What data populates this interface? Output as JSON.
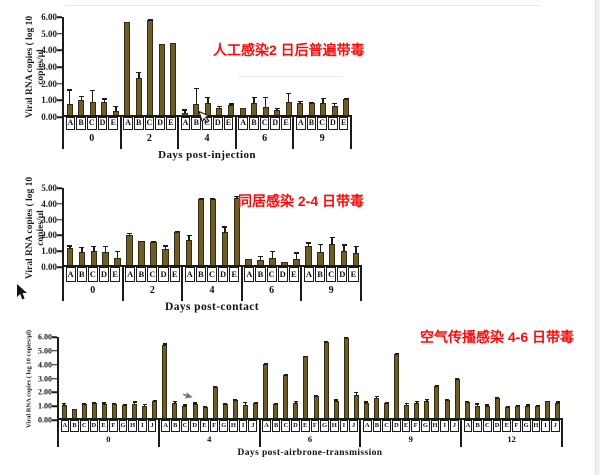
{
  "annotations": {
    "color": "#f60d0d",
    "chart1": "人工感染2 日后普遍带毒",
    "chart2": "同居感染 2-4 日带毒",
    "chart3": "空气传播感染 4-6 日带毒"
  },
  "chart_data": [
    {
      "type": "bar",
      "title": "",
      "ylabel": "Viral RNA copies ( log 10 copies/µl",
      "ylabel_lines": [
        "Viral RNA copies ( log 10",
        "copies/µl"
      ],
      "xlabel": "Days post-injection",
      "ylim": [
        0,
        6
      ],
      "yticks": [
        "6.00",
        "5.00",
        "4.00",
        "3.00",
        "2.00",
        "1.00",
        "0.00"
      ],
      "bar_color": "#6f5c28",
      "grid": false,
      "subjects": [
        "A",
        "B",
        "C",
        "D",
        "E"
      ],
      "groups": [
        "0",
        "2",
        "4",
        "6",
        "9"
      ],
      "series": [
        {
          "day": "0",
          "values": [
            0.65,
            0.9,
            0.8,
            0.8,
            0.25
          ],
          "errors": [
            0.9,
            0.25,
            0.7,
            0.2,
            0.3
          ]
        },
        {
          "day": "2",
          "values": [
            5.6,
            2.2,
            5.7,
            4.25,
            4.3
          ],
          "errors": [
            0,
            0.4,
            0.05,
            0,
            0
          ]
        },
        {
          "day": "4",
          "values": [
            0.1,
            0.65,
            0.75,
            0.45,
            0.6
          ],
          "errors": [
            0.25,
            1.0,
            0.35,
            0.1,
            0.1
          ]
        },
        {
          "day": "6",
          "values": [
            0.45,
            0.7,
            0.5,
            0.3,
            0.8
          ],
          "errors": [
            0,
            0.4,
            0.6,
            0.15,
            0.55
          ]
        },
        {
          "day": "9",
          "values": [
            0.7,
            0.75,
            0.7,
            0.55,
            0.95
          ],
          "errors": [
            0.15,
            0.05,
            0.35,
            0.2,
            0.1
          ]
        }
      ]
    },
    {
      "type": "bar",
      "title": "",
      "ylabel": "Viral RNA copies ( log 10 copies/µl",
      "ylabel_lines": [
        "Viral RNA copies ( log 10",
        "copies/µl"
      ],
      "xlabel": "Days post-contact",
      "ylim": [
        0,
        5
      ],
      "yticks": [
        "5.00",
        "4.00",
        "3.00",
        "2.00",
        "1.00",
        "0.00"
      ],
      "bar_color": "#6f5c28",
      "grid": false,
      "subjects": [
        "A",
        "B",
        "C",
        "D",
        "E"
      ],
      "groups": [
        "0",
        "2",
        "4",
        "6",
        "9"
      ],
      "series": [
        {
          "day": "0",
          "values": [
            1.1,
            0.85,
            0.9,
            0.85,
            0.45
          ],
          "errors": [
            0.15,
            0.3,
            0.3,
            0.35,
            0.45
          ]
        },
        {
          "day": "2",
          "values": [
            1.9,
            1.5,
            1.45,
            1.0,
            2.1
          ],
          "errors": [
            0.15,
            0.05,
            0.1,
            0.25,
            0.05
          ]
        },
        {
          "day": "4",
          "values": [
            1.6,
            4.2,
            4.15,
            2.1,
            4.25
          ],
          "errors": [
            0.3,
            0.05,
            0.1,
            0.35,
            0.15
          ]
        },
        {
          "day": "6",
          "values": [
            0.4,
            0.3,
            0.45,
            0.2,
            0.35
          ],
          "errors": [
            0,
            0.3,
            0.45,
            0,
            0.45
          ]
        },
        {
          "day": "9",
          "values": [
            1.2,
            0.8,
            1.35,
            0.9,
            0.75
          ],
          "errors": [
            0.25,
            0.55,
            0.45,
            0.4,
            0.45
          ]
        }
      ]
    },
    {
      "type": "bar",
      "title": "",
      "ylabel": "Viral RNA copies ( log 10 copies/µl)",
      "ylabel_lines": [
        "Viral RNA copies ( log 10 copies/µl)"
      ],
      "xlabel": "Days post-airbrone-transmission",
      "ylim": [
        0,
        6
      ],
      "yticks": [
        "6.00",
        "5.00",
        "4.00",
        "3.00",
        "2.00",
        "1.00",
        "0.00"
      ],
      "bar_color": "#6f5c28",
      "grid": false,
      "subjects": [
        "A",
        "B",
        "C",
        "D",
        "E",
        "F",
        "G",
        "H",
        "I",
        "J"
      ],
      "groups": [
        "0",
        "4",
        "6",
        "9",
        "12"
      ],
      "series": [
        {
          "day": "0",
          "values": [
            0.95,
            0.65,
            1.0,
            1.05,
            1.0,
            1.0,
            0.95,
            1.0,
            0.9,
            1.2
          ],
          "errors": [
            0.15,
            0,
            0.05,
            0.1,
            0.15,
            0.1,
            0.05,
            0.2,
            0.15,
            0.1
          ]
        },
        {
          "day": "4",
          "values": [
            5.3,
            1.1,
            0.85,
            1.0,
            0.8,
            2.25,
            1.0,
            1.3,
            0.95,
            1.05
          ],
          "errors": [
            0.1,
            0.15,
            0.15,
            0.15,
            0.1,
            0.1,
            0.05,
            0.05,
            0.2,
            0.1
          ]
        },
        {
          "day": "6",
          "values": [
            3.9,
            1.0,
            3.1,
            1.05,
            4.45,
            1.6,
            5.5,
            1.2,
            5.85,
            1.65
          ],
          "errors": [
            0.05,
            0.1,
            0.05,
            0.2,
            0.05,
            0.1,
            0.05,
            0.15,
            0.05,
            0.25
          ]
        },
        {
          "day": "9",
          "values": [
            1.1,
            1.45,
            1.05,
            4.65,
            0.95,
            1.1,
            1.25,
            2.3,
            1.3,
            2.85
          ],
          "errors": [
            0.1,
            0.15,
            0.1,
            0.05,
            0.15,
            0.15,
            0.15,
            0.1,
            0.1,
            0.05
          ]
        },
        {
          "day": "12",
          "values": [
            1.15,
            0.85,
            0.9,
            1.45,
            0.8,
            0.85,
            0.9,
            0.85,
            1.2,
            1.1
          ],
          "errors": [
            0.1,
            0.2,
            0.1,
            0.1,
            0.1,
            0.1,
            0.1,
            0.1,
            0.05,
            0.1
          ]
        }
      ]
    }
  ],
  "artifacts": {
    "cursor_left": "black-mouse-pointer",
    "cursor_chart1": "white-mouse-pointer",
    "glyph_chart3": "small-cursor-smudge"
  }
}
